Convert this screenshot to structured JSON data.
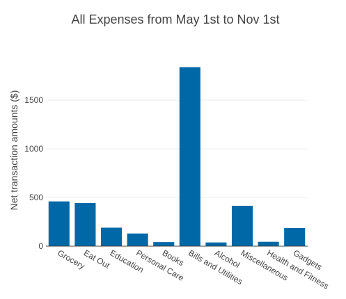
{
  "chart_data": {
    "type": "bar",
    "title": "All Expenses from May 1st to Nov 1st",
    "xlabel": "",
    "ylabel": "Net transaction amounts ($)",
    "categories": [
      "Grocery",
      "Eat Out",
      "Education",
      "Personal Care",
      "Books",
      "Bills and Utilities",
      "Alcohol",
      "Miscellaneous",
      "Health and Fitness",
      "Gadgets"
    ],
    "values": [
      460,
      443,
      190,
      130,
      42,
      1840,
      38,
      415,
      45,
      186
    ],
    "ylim": [
      0,
      1930
    ],
    "yticks": [
      0,
      500,
      1000,
      1500
    ],
    "ytick_labels": [
      "0",
      "500",
      "1000",
      "1500"
    ],
    "grid": true,
    "bar_color": "#0068a6",
    "colors": {
      "grid": "#eeeeee",
      "axis": "#444444",
      "text": "#444444"
    }
  }
}
